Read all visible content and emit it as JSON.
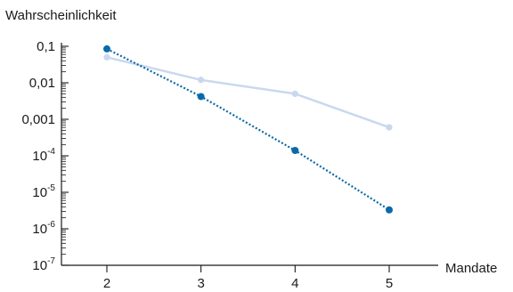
{
  "chart_data": {
    "type": "line",
    "title": "",
    "ylabel": "Wahrscheinlichkeit",
    "xlabel": "Mandate",
    "y_scale": "log",
    "ylim": [
      1e-07,
      0.1
    ],
    "xlim": [
      2,
      5
    ],
    "x": [
      2,
      3,
      4,
      5
    ],
    "x_tick_labels": [
      "2",
      "3",
      "4",
      "5"
    ],
    "y_ticks": [
      {
        "value": 0.1,
        "base": "0,1",
        "exp": ""
      },
      {
        "value": 0.01,
        "base": "0,01",
        "exp": ""
      },
      {
        "value": 0.001,
        "base": "0,001",
        "exp": ""
      },
      {
        "value": 0.0001,
        "base": "10",
        "exp": "-4"
      },
      {
        "value": 1e-05,
        "base": "10",
        "exp": "-5"
      },
      {
        "value": 1e-06,
        "base": "10",
        "exp": "-6"
      },
      {
        "value": 1e-07,
        "base": "10",
        "exp": "-7"
      }
    ],
    "grid": false,
    "legend": "none",
    "series": [
      {
        "values": [
          0.05,
          0.012,
          0.005,
          0.0006
        ],
        "color": "#c9d8ee",
        "line_style": "solid"
      },
      {
        "values": [
          0.085,
          0.0042,
          0.00014,
          3.3e-06
        ],
        "color": "#0a6aa8",
        "line_style": "dotted"
      }
    ]
  }
}
